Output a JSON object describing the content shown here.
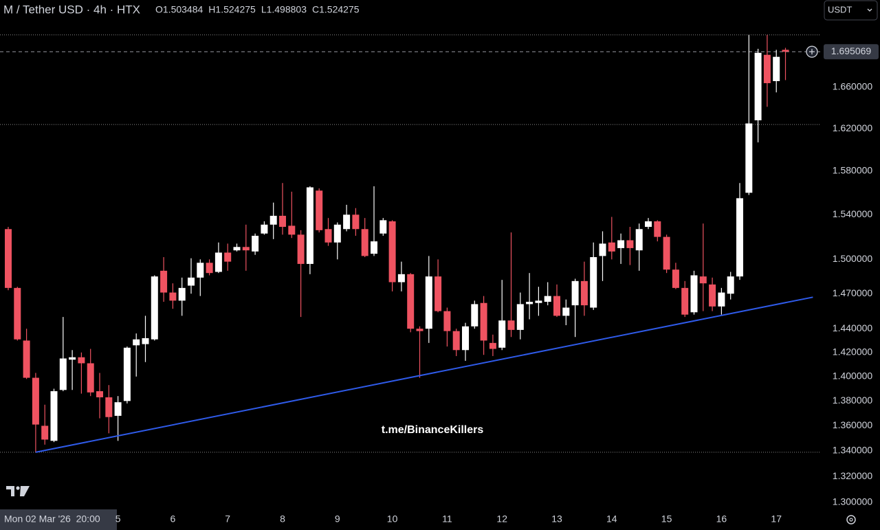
{
  "chart_data": {
    "type": "candlestick",
    "title": "M / Tether USD · 4h · HTX",
    "ohlc_header": [
      "O1.503484",
      "H1.524275",
      "L1.498803",
      "C1.524275"
    ],
    "currency": "USDT",
    "crosshair_label": "Mon 02 Mar '26  20:00",
    "watermark": "t.me/BinanceKillers",
    "log_scale": true,
    "up_color": "#ffffff",
    "down_color": "#ef5361",
    "categories": [
      null,
      null,
      null,
      null,
      null,
      null,
      null,
      null,
      null,
      null,
      null,
      null,
      "5",
      null,
      null,
      null,
      null,
      null,
      "6",
      null,
      null,
      null,
      null,
      null,
      "7",
      null,
      null,
      null,
      null,
      null,
      "8",
      null,
      null,
      null,
      null,
      null,
      "9",
      null,
      null,
      null,
      null,
      null,
      "10",
      null,
      null,
      null,
      null,
      null,
      "11",
      null,
      null,
      null,
      null,
      null,
      "12",
      null,
      null,
      null,
      null,
      null,
      "13",
      null,
      null,
      null,
      null,
      null,
      "14",
      null,
      null,
      null,
      null,
      null,
      "15",
      null,
      null,
      null,
      null,
      null,
      "16",
      null,
      null,
      null,
      null,
      null,
      "17",
      null
    ],
    "open": [
      1.527,
      1.475,
      1.43,
      1.399,
      1.36,
      1.348,
      1.389,
      1.414,
      1.416,
      1.411,
      1.388,
      1.383,
      1.368,
      1.38,
      1.426,
      1.427,
      1.431,
      1.49,
      1.471,
      1.464,
      1.477,
      1.484,
      1.497,
      1.489,
      1.506,
      1.508,
      1.511,
      1.507,
      1.523,
      1.531,
      1.539,
      1.53,
      1.522,
      1.496,
      1.562,
      1.527,
      1.515,
      1.527,
      1.54,
      1.527,
      1.505,
      1.523,
      1.534,
      1.48,
      1.487,
      1.44,
      1.44,
      1.485,
      1.455,
      1.438,
      1.422,
      1.442,
      1.462,
      1.428,
      1.424,
      1.447,
      1.439,
      1.461,
      1.462,
      1.463,
      1.468,
      1.451,
      1.46,
      1.481,
      1.458,
      1.503,
      1.515,
      1.51,
      1.517,
      1.508,
      1.529,
      1.534,
      1.52,
      1.491,
      1.475,
      1.454,
      1.485,
      1.478,
      1.459,
      1.47,
      1.485,
      1.56,
      1.628,
      1.692,
      1.666,
      1.697
    ],
    "high": [
      1.529,
      1.476,
      1.44,
      1.403,
      1.377,
      1.39,
      1.45,
      1.422,
      1.42,
      1.423,
      1.403,
      1.393,
      1.384,
      1.425,
      1.436,
      1.451,
      1.486,
      1.502,
      1.479,
      1.484,
      1.501,
      1.5,
      1.5,
      1.515,
      1.514,
      1.514,
      1.531,
      1.523,
      1.534,
      1.551,
      1.569,
      1.561,
      1.526,
      1.566,
      1.564,
      1.537,
      1.533,
      1.549,
      1.546,
      1.537,
      1.566,
      1.537,
      1.535,
      1.498,
      1.488,
      1.442,
      1.503,
      1.5,
      1.458,
      1.44,
      1.445,
      1.464,
      1.468,
      1.435,
      1.482,
      1.524,
      1.471,
      1.488,
      1.476,
      1.48,
      1.478,
      1.465,
      1.483,
      1.498,
      1.515,
      1.525,
      1.538,
      1.523,
      1.529,
      1.532,
      1.537,
      1.535,
      1.522,
      1.497,
      1.481,
      1.49,
      1.532,
      1.484,
      1.475,
      1.489,
      1.569,
      1.712,
      1.698,
      1.712,
      1.697,
      1.699
    ],
    "low": [
      1.473,
      1.43,
      1.398,
      1.339,
      1.345,
      1.347,
      1.388,
      1.389,
      1.386,
      1.384,
      1.366,
      1.354,
      1.348,
      1.378,
      1.4,
      1.412,
      1.43,
      1.463,
      1.457,
      1.451,
      1.47,
      1.468,
      1.486,
      1.488,
      1.49,
      1.507,
      1.49,
      1.504,
      1.522,
      1.518,
      1.522,
      1.519,
      1.45,
      1.487,
      1.524,
      1.512,
      1.5,
      1.525,
      1.521,
      1.502,
      1.503,
      1.521,
      1.472,
      1.472,
      1.437,
      1.399,
      1.428,
      1.454,
      1.425,
      1.417,
      1.413,
      1.44,
      1.418,
      1.417,
      1.422,
      1.433,
      1.431,
      1.448,
      1.451,
      1.46,
      1.45,
      1.443,
      1.433,
      1.451,
      1.456,
      1.481,
      1.5,
      1.496,
      1.495,
      1.49,
      1.527,
      1.516,
      1.488,
      1.474,
      1.45,
      1.452,
      1.455,
      1.455,
      1.452,
      1.465,
      1.482,
      1.558,
      1.607,
      1.641,
      1.655,
      1.667
    ],
    "close": [
      1.475,
      1.431,
      1.399,
      1.361,
      1.349,
      1.388,
      1.415,
      1.416,
      1.411,
      1.387,
      1.383,
      1.367,
      1.379,
      1.424,
      1.431,
      1.432,
      1.485,
      1.471,
      1.464,
      1.475,
      1.484,
      1.497,
      1.488,
      1.506,
      1.498,
      1.511,
      1.508,
      1.521,
      1.531,
      1.539,
      1.529,
      1.522,
      1.496,
      1.565,
      1.526,
      1.515,
      1.531,
      1.54,
      1.527,
      1.503,
      1.516,
      1.535,
      1.48,
      1.487,
      1.44,
      1.438,
      1.485,
      1.455,
      1.438,
      1.422,
      1.442,
      1.461,
      1.43,
      1.423,
      1.447,
      1.439,
      1.461,
      1.463,
      1.464,
      1.468,
      1.451,
      1.458,
      1.481,
      1.46,
      1.502,
      1.514,
      1.507,
      1.517,
      1.51,
      1.527,
      1.534,
      1.52,
      1.491,
      1.475,
      1.452,
      1.486,
      1.479,
      1.459,
      1.471,
      1.485,
      1.555,
      1.625,
      1.694,
      1.664,
      1.69,
      1.695069
    ],
    "current_price": 1.695069,
    "levels": [
      1.712,
      1.624,
      1.339
    ],
    "trendline": {
      "x": [
        3,
        88
      ],
      "values": [
        1.339,
        1.467
      ],
      "color": "#2f5bea"
    },
    "ylim": [
      1.2926,
      1.7475
    ],
    "yticks": [
      {
        "value": 1.3,
        "label": "1.300000"
      },
      {
        "value": 1.32,
        "label": "1.320000"
      },
      {
        "value": 1.34,
        "label": "1.340000"
      },
      {
        "value": 1.36,
        "label": "1.360000"
      },
      {
        "value": 1.38,
        "label": "1.380000"
      },
      {
        "value": 1.4,
        "label": "1.400000"
      },
      {
        "value": 1.42,
        "label": "1.420000"
      },
      {
        "value": 1.44,
        "label": "1.440000"
      },
      {
        "value": 1.47,
        "label": "1.470000"
      },
      {
        "value": 1.5,
        "label": "1.500000"
      },
      {
        "value": 1.54,
        "label": "1.540000"
      },
      {
        "value": 1.58,
        "label": "1.580000"
      },
      {
        "value": 1.62,
        "label": "1.620000"
      },
      {
        "value": 1.66,
        "label": "1.660000"
      }
    ]
  }
}
